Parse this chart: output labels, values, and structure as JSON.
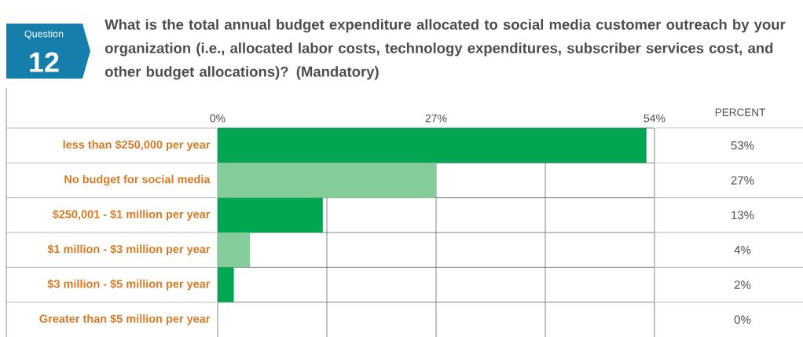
{
  "chart_data": {
    "type": "bar",
    "orientation": "horizontal",
    "title": "What is the total annual budget expenditure allocated to social media customer outreach by your organization (i.e., allocated labor costs, technology expenditures, subscriber services cost, and other budget allocations)? (Mandatory)",
    "annotations": [
      "Question",
      "12",
      "PERCENT"
    ],
    "categories": [
      "less than $250,000 per year",
      "No budget for social media",
      "$250,001 - $1 million per year",
      "$1 million - $3 million per year",
      "$3 million - $5 million per year",
      "Greater than $5 million per year"
    ],
    "values": [
      53,
      27,
      13,
      4,
      2,
      0
    ],
    "colors": [
      "#00a651",
      "#85cc9b",
      "#00a651",
      "#85cc9b",
      "#00a651",
      "#85cc9b"
    ],
    "value_labels": [
      "53%",
      "27%",
      "13%",
      "4%",
      "2%",
      "0%"
    ],
    "xlim": [
      0,
      54
    ],
    "xticks": [
      {
        "value": 0,
        "label": "0%"
      },
      {
        "value": 13.5,
        "label": null
      },
      {
        "value": 27,
        "label": "27%"
      },
      {
        "value": 40.5,
        "label": null
      },
      {
        "value": 54,
        "label": "54%"
      }
    ],
    "grid": "x"
  }
}
